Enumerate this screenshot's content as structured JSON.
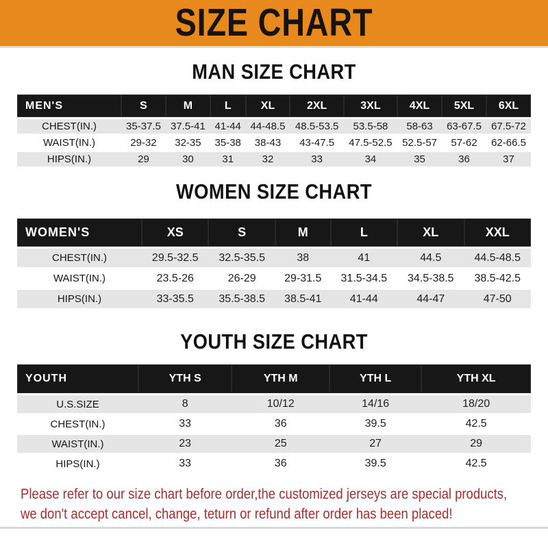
{
  "banner": {
    "title": "SIZE CHART"
  },
  "colors": {
    "banner_orange": "#E8891E",
    "header_black": "#171717",
    "row_gray": "#E5E5E5",
    "footer_red": "#A82E2E"
  },
  "sections": {
    "men": {
      "heading": "MAN SIZE CHART",
      "table": {
        "label": "MEN'S",
        "columns": [
          "S",
          "M",
          "L",
          "XL",
          "2XL",
          "3XL",
          "4XL",
          "5XL",
          "6XL"
        ],
        "rows": [
          {
            "label": "CHEST(IN.)",
            "values": [
              "35-37.5",
              "37.5-41",
              "41-44",
              "44-48.5",
              "48.5-53.5",
              "53.5-58",
              "58-63",
              "63-67.5",
              "67.5-72"
            ]
          },
          {
            "label": "WAIST(IN.)",
            "values": [
              "29-32",
              "32-35",
              "35-38",
              "38-43",
              "43-47.5",
              "47.5-52.5",
              "52.5-57",
              "57-62",
              "62-66.5"
            ]
          },
          {
            "label": "HIPS(IN.)",
            "values": [
              "29",
              "30",
              "31",
              "32",
              "33",
              "34",
              "35",
              "36",
              "37"
            ]
          }
        ]
      }
    },
    "women": {
      "heading": "WOMEN SIZE CHART",
      "table": {
        "label": "WOMEN'S",
        "columns": [
          "XS",
          "S",
          "M",
          "L",
          "XL",
          "XXL"
        ],
        "rows": [
          {
            "label": "CHEST(IN.)",
            "values": [
              "29.5-32.5",
              "32.5-35.5",
              "38",
              "41",
              "44.5",
              "44.5-48.5"
            ]
          },
          {
            "label": "WAIST(IN.)",
            "values": [
              "23.5-26",
              "26-29",
              "29-31.5",
              "31.5-34.5",
              "34.5-38.5",
              "38.5-42.5"
            ]
          },
          {
            "label": "HIPS(IN.)",
            "values": [
              "33-35.5",
              "35.5-38.5",
              "38.5-41",
              "41-44",
              "44-47",
              "47-50"
            ]
          }
        ]
      }
    },
    "youth": {
      "heading": "YOUTH SIZE CHART",
      "table": {
        "label": "YOUTH",
        "columns": [
          "YTH S",
          "YTH M",
          "YTH L",
          "YTH XL"
        ],
        "rows": [
          {
            "label": "U.S.SIZE",
            "values": [
              "8",
              "10/12",
              "14/16",
              "18/20"
            ]
          },
          {
            "label": "CHEST(IN.)",
            "values": [
              "33",
              "36",
              "39.5",
              "42.5"
            ]
          },
          {
            "label": "WAIST(IN.)",
            "values": [
              "23",
              "25",
              "27",
              "29"
            ]
          },
          {
            "label": "HIPS(IN.)",
            "values": [
              "33",
              "36",
              "39.5",
              "42.5"
            ]
          }
        ]
      }
    }
  },
  "footer": {
    "line1": "Please refer to our size chart before order,the customized jerseys are special products,",
    "line2": "we don't accept cancel, change, teturn or refund after order has been placed!"
  }
}
